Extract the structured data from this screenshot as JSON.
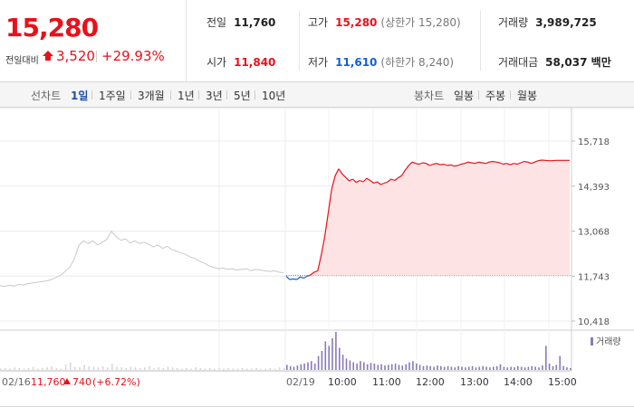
{
  "quote": {
    "price": "15,280",
    "change_label": "전일대비",
    "change_value": "3,520",
    "change_pct": "+29.93%",
    "row1": [
      {
        "label": "전일",
        "value": "11,760",
        "color": "dark"
      },
      {
        "label": "고가",
        "value": "15,280",
        "color": "red",
        "sub": "(상한가 15,280)"
      },
      {
        "label": "거래량",
        "value": "3,989,725",
        "color": "dark"
      }
    ],
    "row2": [
      {
        "label": "시가",
        "value": "11,840",
        "color": "red"
      },
      {
        "label": "저가",
        "value": "11,610",
        "color": "blue",
        "sub": "(하한가 8,240)"
      },
      {
        "label": "거래대금",
        "value": "58,037 백만",
        "color": "dark"
      }
    ]
  },
  "tabs": {
    "line_label": "선차트",
    "line_tabs": [
      "1일",
      "1주일",
      "3개월",
      "1년",
      "3년",
      "5년",
      "10년"
    ],
    "active": "1일",
    "candle_label": "봉차트",
    "candle_tabs": [
      "일봉",
      "주봉",
      "월봉"
    ]
  },
  "chart_data": {
    "type": "line",
    "y_ticks": [
      "15,718",
      "14,393",
      "13,068",
      "11,743",
      "10,418"
    ],
    "ylim": [
      10418,
      15718
    ],
    "reference_line": 11760,
    "volume_legend": "거래량",
    "x_ticks": [
      "02/19",
      "10:00",
      "11:00",
      "12:00",
      "13:00",
      "14:00",
      "15:00"
    ],
    "prev_day_label": "02/16",
    "prev_day_close": "11,760",
    "prev_day_change": "740",
    "prev_day_pct": "(+6.72%)",
    "prev_day_series": [
      11460,
      11440,
      11470,
      11450,
      11500,
      11480,
      11520,
      11540,
      11560,
      11580,
      11600,
      11640,
      11700,
      11760,
      11880,
      12000,
      12250,
      12650,
      12780,
      12700,
      12780,
      12660,
      12740,
      12820,
      13060,
      12900,
      12800,
      12840,
      12720,
      12780,
      12700,
      12740,
      12680,
      12600,
      12660,
      12560,
      12620,
      12520,
      12480,
      12420,
      12380,
      12300,
      12260,
      12180,
      12120,
      12040,
      12000,
      11960,
      11980,
      11940,
      11960,
      11920,
      11940,
      11960,
      11900,
      11940,
      11920,
      11900,
      11880,
      11900,
      11860,
      11840
    ],
    "today_series": [
      11740,
      11640,
      11660,
      11640,
      11720,
      11680,
      11740,
      11780,
      11860,
      11900,
      12350,
      12900,
      13600,
      14300,
      14700,
      14900,
      14750,
      14650,
      14550,
      14600,
      14500,
      14560,
      14520,
      14620,
      14560,
      14480,
      14520,
      14440,
      14480,
      14520,
      14600,
      14560,
      14640,
      14700,
      14860,
      15000,
      15100,
      15060,
      15040,
      15080,
      15060,
      15000,
      15040,
      15060,
      15020,
      15040,
      15000,
      15020,
      14980,
      15000,
      15040,
      15060,
      15100,
      15080,
      15060,
      15100,
      15080,
      15060,
      15100,
      15120,
      15100,
      15080,
      15040,
      15060,
      15020,
      15060,
      15040,
      15080,
      15120,
      15100,
      15060,
      15100,
      15140,
      15160,
      15150,
      15140,
      15140,
      15150,
      15150,
      15150,
      15150,
      15150
    ],
    "volume_prev": [
      2,
      3,
      2,
      4,
      3,
      2,
      3,
      5,
      2,
      3,
      4,
      6,
      3,
      2,
      9,
      12,
      5,
      4,
      8,
      6,
      5,
      4,
      6,
      4,
      10,
      5,
      4,
      3,
      5,
      4,
      3,
      4,
      6,
      3,
      4,
      3,
      5,
      4,
      3,
      2,
      3,
      2,
      4,
      3,
      2,
      3,
      2,
      3,
      2,
      3,
      2,
      2,
      3,
      2,
      2,
      3,
      2,
      2,
      3,
      2,
      4,
      3
    ],
    "volume_today": [
      8,
      6,
      5,
      7,
      9,
      10,
      12,
      14,
      10,
      22,
      30,
      45,
      38,
      50,
      60,
      35,
      24,
      18,
      15,
      12,
      10,
      14,
      12,
      9,
      11,
      10,
      8,
      9,
      7,
      8,
      9,
      10,
      8,
      7,
      9,
      12,
      14,
      10,
      8,
      6,
      7,
      6,
      5,
      7,
      6,
      5,
      6,
      5,
      4,
      6,
      5,
      4,
      5,
      6,
      4,
      5,
      6,
      5,
      4,
      5,
      6,
      9,
      5,
      4,
      5,
      4,
      6,
      5,
      4,
      5,
      6,
      5,
      4,
      7,
      38,
      10,
      6,
      8,
      22,
      6,
      4,
      3
    ]
  }
}
